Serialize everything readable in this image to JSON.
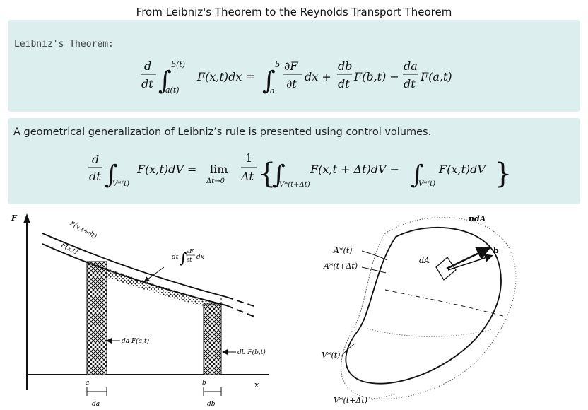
{
  "title": "From Leibniz's Theorem to the Reynolds Transport Theorem",
  "leibniz": {
    "label": "Leibniz's Theorem:",
    "equation": {
      "d": "d",
      "dt": "dt",
      "upper": "b(t)",
      "lower": "a(t)",
      "integrand": "F(x,t)dx =",
      "upper2": "b",
      "lower2": "a",
      "dF": "∂F",
      "dtpartial": "∂t",
      "dx_plus": "dx +",
      "db": "db",
      "dt2": "dt",
      "Fb_minus": "F(b,t) −",
      "da": "da",
      "dt3": "dt",
      "Fa": "F(a,t)"
    }
  },
  "generalization": {
    "text": "A geometrical generalization of Leibniz’s rule is presented using control volumes.",
    "equation": {
      "d": "d",
      "dt": "dt",
      "sub1": "V*(t)",
      "integrand1": "F(x,t)dV =",
      "lim": "lim",
      "limsub": "Δt→0",
      "one": "1",
      "deltat": "Δt",
      "sub2": "V*(t+Δt)",
      "integrand2": "F(x,t + Δt)dV −",
      "sub3": "V*(t)",
      "integrand3": "F(x,t)dV"
    }
  },
  "figure_left": {
    "F_axis": "F",
    "x_axis": "x",
    "curve_upper": "F(x,t+dt)",
    "curve_lower": "F(x,t)",
    "integral_label_dt": "dt",
    "integral_label_dF": "∂F",
    "integral_label_dtp": "∂t",
    "integral_label_dx": "dx",
    "left_strip": "da F(a,t)",
    "right_strip": "db F(b,t)",
    "a": "a",
    "b": "b",
    "da": "da",
    "db": "db"
  },
  "figure_right": {
    "ndA": "ndA",
    "b": "b",
    "dA": "dA",
    "A_t": "A*(t)",
    "A_tdt": "A*(t+Δt)",
    "V_t": "V*(t)",
    "V_tdt": "V*(t+Δt)"
  }
}
